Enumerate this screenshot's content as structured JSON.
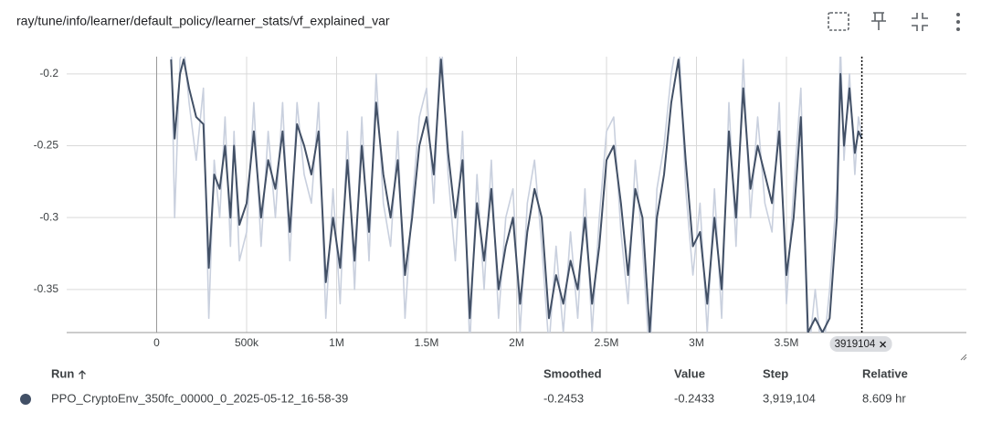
{
  "header": {
    "title": "ray/tune/info/learner/default_policy/learner_stats/vf_explained_var"
  },
  "chart_data": {
    "type": "line",
    "x": [
      80000,
      100000,
      130000,
      150000,
      180000,
      220000,
      260000,
      290000,
      320000,
      350000,
      380000,
      410000,
      430000,
      460000,
      500000,
      540000,
      580000,
      620000,
      660000,
      700000,
      740000,
      780000,
      820000,
      860000,
      900000,
      940000,
      980000,
      1020000,
      1060000,
      1100000,
      1140000,
      1180000,
      1220000,
      1260000,
      1300000,
      1340000,
      1380000,
      1420000,
      1460000,
      1500000,
      1540000,
      1580000,
      1620000,
      1660000,
      1700000,
      1740000,
      1780000,
      1820000,
      1860000,
      1900000,
      1940000,
      1980000,
      2020000,
      2060000,
      2100000,
      2140000,
      2180000,
      2220000,
      2260000,
      2300000,
      2340000,
      2380000,
      2420000,
      2460000,
      2500000,
      2540000,
      2580000,
      2620000,
      2660000,
      2700000,
      2740000,
      2780000,
      2820000,
      2860000,
      2900000,
      2940000,
      2980000,
      3020000,
      3060000,
      3100000,
      3140000,
      3180000,
      3220000,
      3260000,
      3300000,
      3340000,
      3380000,
      3420000,
      3460000,
      3500000,
      3540000,
      3580000,
      3620000,
      3660000,
      3700000,
      3740000,
      3780000,
      3800000,
      3820000,
      3850000,
      3880000,
      3900000,
      3919104
    ],
    "series": [
      {
        "color": "#c9d0de",
        "values": [
          -0.17,
          -0.3,
          -0.19,
          -0.18,
          -0.22,
          -0.26,
          -0.21,
          -0.37,
          -0.26,
          -0.3,
          -0.23,
          -0.32,
          -0.24,
          -0.33,
          -0.31,
          -0.22,
          -0.32,
          -0.24,
          -0.3,
          -0.22,
          -0.33,
          -0.22,
          -0.27,
          -0.29,
          -0.22,
          -0.37,
          -0.28,
          -0.36,
          -0.24,
          -0.35,
          -0.23,
          -0.33,
          -0.2,
          -0.29,
          -0.32,
          -0.24,
          -0.37,
          -0.29,
          -0.23,
          -0.21,
          -0.29,
          -0.17,
          -0.27,
          -0.33,
          -0.24,
          -0.39,
          -0.27,
          -0.35,
          -0.26,
          -0.37,
          -0.3,
          -0.28,
          -0.38,
          -0.29,
          -0.26,
          -0.32,
          -0.39,
          -0.32,
          -0.38,
          -0.31,
          -0.37,
          -0.28,
          -0.38,
          -0.3,
          -0.24,
          -0.23,
          -0.31,
          -0.36,
          -0.26,
          -0.32,
          -0.4,
          -0.28,
          -0.25,
          -0.2,
          -0.17,
          -0.28,
          -0.34,
          -0.29,
          -0.38,
          -0.28,
          -0.37,
          -0.22,
          -0.32,
          -0.19,
          -0.3,
          -0.23,
          -0.29,
          -0.31,
          -0.22,
          -0.36,
          -0.28,
          -0.21,
          -0.4,
          -0.35,
          -0.4,
          -0.35,
          -0.28,
          -0.18,
          -0.26,
          -0.2,
          -0.27,
          -0.23,
          -0.2433
        ]
      },
      {
        "color": "#425066",
        "values": [
          -0.19,
          -0.245,
          -0.2,
          -0.19,
          -0.21,
          -0.23,
          -0.235,
          -0.335,
          -0.27,
          -0.28,
          -0.25,
          -0.3,
          -0.25,
          -0.305,
          -0.29,
          -0.24,
          -0.3,
          -0.26,
          -0.28,
          -0.24,
          -0.31,
          -0.235,
          -0.25,
          -0.27,
          -0.24,
          -0.345,
          -0.3,
          -0.335,
          -0.26,
          -0.33,
          -0.25,
          -0.31,
          -0.22,
          -0.27,
          -0.3,
          -0.26,
          -0.34,
          -0.3,
          -0.25,
          -0.23,
          -0.27,
          -0.19,
          -0.255,
          -0.3,
          -0.26,
          -0.37,
          -0.29,
          -0.33,
          -0.28,
          -0.35,
          -0.32,
          -0.3,
          -0.36,
          -0.31,
          -0.28,
          -0.3,
          -0.37,
          -0.34,
          -0.36,
          -0.33,
          -0.35,
          -0.3,
          -0.36,
          -0.32,
          -0.26,
          -0.25,
          -0.29,
          -0.34,
          -0.28,
          -0.3,
          -0.38,
          -0.3,
          -0.27,
          -0.22,
          -0.19,
          -0.26,
          -0.32,
          -0.31,
          -0.36,
          -0.3,
          -0.35,
          -0.24,
          -0.3,
          -0.21,
          -0.28,
          -0.25,
          -0.27,
          -0.29,
          -0.24,
          -0.34,
          -0.3,
          -0.23,
          -0.38,
          -0.37,
          -0.38,
          -0.37,
          -0.3,
          -0.2,
          -0.25,
          -0.21,
          -0.255,
          -0.24,
          -0.2453
        ]
      }
    ],
    "xlim": [
      -500000,
      4500000
    ],
    "xticks": [
      0,
      {
        "value": 500000,
        "label": "500k"
      },
      {
        "value": 1000000,
        "label": "1M"
      },
      {
        "value": 1500000,
        "label": "1.5M"
      },
      {
        "value": 2000000,
        "label": "2M"
      },
      {
        "value": 2500000,
        "label": "2.5M"
      },
      {
        "value": 3000000,
        "label": "3M"
      },
      {
        "value": 3500000,
        "label": "3.5M"
      }
    ],
    "ylim": [
      -0.38,
      -0.188
    ],
    "yticks": [
      -0.2,
      -0.25,
      -0.3,
      -0.35
    ],
    "grid": true,
    "hover_step": 3919104
  },
  "table": {
    "headers": [
      "Run",
      "Smoothed",
      "Value",
      "Step",
      "Relative"
    ],
    "rows": [
      [
        "PPO_CryptoEnv_350fc_00000_0_2025-05-12_16-58-39",
        "-0.2453",
        "-0.2433",
        "3,919,104",
        "8.609 hr"
      ]
    ]
  }
}
